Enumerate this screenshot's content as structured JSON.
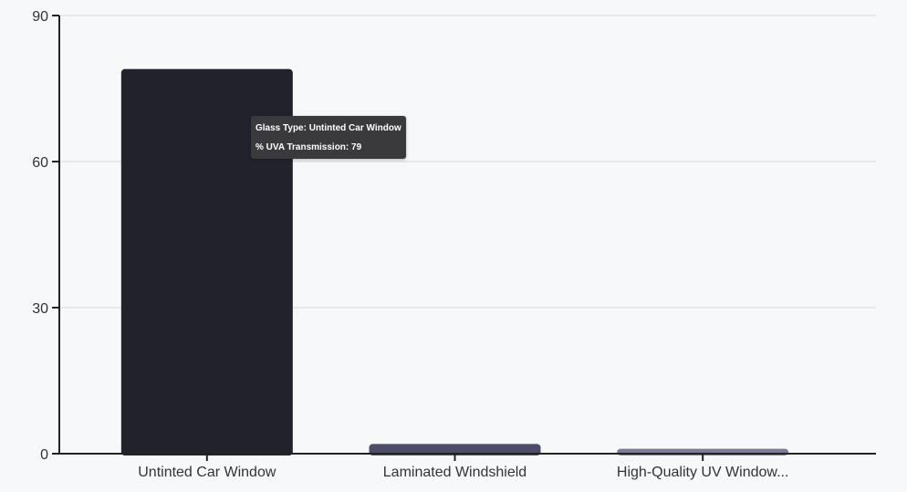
{
  "chart_data": {
    "type": "bar",
    "categories": [
      "Untinted Car Window",
      "Laminated Windshield",
      "High-Quality UV Window..."
    ],
    "values": [
      79,
      2,
      1
    ],
    "ylim": [
      0,
      90
    ],
    "yticks": [
      0,
      30,
      60,
      90
    ],
    "grid": true,
    "bar_colors": [
      "#22222d",
      "#4d4d68",
      "#7c7c97"
    ]
  },
  "tooltip": {
    "line1": "Glass Type: Untinted Car Window",
    "line2": "% UVA Transmission: 79"
  }
}
